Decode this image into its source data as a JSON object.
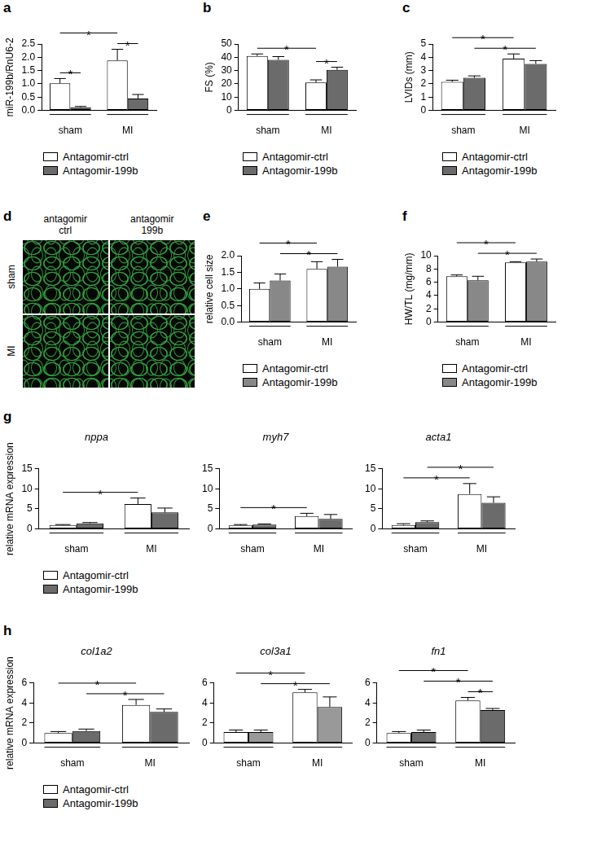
{
  "chart_data": [
    {
      "panel": "a",
      "type": "bar",
      "ylabel": "miR-199b/RnU6-2",
      "categories": [
        "sham",
        "MI"
      ],
      "series": [
        {
          "name": "Antagomir-ctrl",
          "color": "#ffffff",
          "values": [
            1.02,
            1.88
          ],
          "errors": [
            0.18,
            0.42
          ]
        },
        {
          "name": "Antagomir-199b",
          "color": "#6b6b6b",
          "values": [
            0.12,
            0.45
          ],
          "errors": [
            0.03,
            0.15
          ]
        }
      ],
      "ylim": [
        0,
        2.5
      ],
      "yticks": [
        {
          "value": 0,
          "label": "0.0"
        },
        0.5,
        {
          "value": 1,
          "label": "1.0"
        },
        1.5,
        {
          "value": 2,
          "label": "2.0"
        },
        2.5
      ],
      "significance": [
        {
          "between": [
            [
              "sham",
              "Antagomir-ctrl"
            ],
            [
              "sham",
              "Antagomir-199b"
            ]
          ],
          "label": "*"
        },
        {
          "between": [
            [
              "MI",
              "Antagomir-ctrl"
            ],
            [
              "MI",
              "Antagomir-199b"
            ]
          ],
          "label": "*"
        },
        {
          "between": [
            [
              "sham",
              "Antagomir-ctrl"
            ],
            [
              "MI",
              "Antagomir-ctrl"
            ]
          ],
          "label": "*"
        }
      ],
      "legend": "bottom"
    },
    {
      "panel": "b",
      "type": "bar",
      "ylabel": "FS (%)",
      "categories": [
        "sham",
        "MI"
      ],
      "series": [
        {
          "name": "Antagomir-ctrl",
          "color": "#ffffff",
          "values": [
            41,
            21
          ],
          "errors": [
            1.5,
            2
          ]
        },
        {
          "name": "Antagomir-199b",
          "color": "#6b6b6b",
          "values": [
            38,
            30.5
          ],
          "errors": [
            2.5,
            2
          ]
        }
      ],
      "ylim": [
        0,
        50
      ],
      "yticks": [
        0,
        10,
        20,
        30,
        40,
        50
      ],
      "significance": [
        {
          "between": [
            [
              "MI",
              "Antagomir-ctrl"
            ],
            [
              "MI",
              "Antagomir-199b"
            ]
          ],
          "label": "*"
        },
        {
          "between": [
            [
              "sham",
              "Antagomir-ctrl"
            ],
            [
              "MI",
              "Antagomir-ctrl"
            ]
          ],
          "label": "*"
        }
      ],
      "legend": "bottom"
    },
    {
      "panel": "c",
      "type": "bar",
      "ylabel": "LVIDs (mm)",
      "categories": [
        "sham",
        "MI"
      ],
      "series": [
        {
          "name": "Antagomir-ctrl",
          "color": "#ffffff",
          "values": [
            2.15,
            3.9
          ],
          "errors": [
            0.12,
            0.35
          ]
        },
        {
          "name": "Antagomir-199b",
          "color": "#6b6b6b",
          "values": [
            2.45,
            3.5
          ],
          "errors": [
            0.15,
            0.25
          ]
        }
      ],
      "ylim": [
        0,
        5
      ],
      "yticks": [
        0,
        1,
        2,
        3,
        4,
        5
      ],
      "significance": [
        {
          "between": [
            [
              "sham",
              "Antagomir-199b"
            ],
            [
              "MI",
              "Antagomir-199b"
            ]
          ],
          "label": "*"
        },
        {
          "between": [
            [
              "sham",
              "Antagomir-ctrl"
            ],
            [
              "MI",
              "Antagomir-ctrl"
            ]
          ],
          "label": "*"
        }
      ],
      "legend": "bottom"
    },
    {
      "panel": "d",
      "type": "image",
      "columns": [
        [
          "antagomir",
          "ctrl"
        ],
        [
          "antagomir",
          "199b"
        ]
      ],
      "rows": [
        "sham",
        "MI"
      ]
    },
    {
      "panel": "e",
      "type": "bar",
      "ylabel": "relative cell size",
      "categories": [
        "sham",
        "MI"
      ],
      "series": [
        {
          "name": "Antagomir-ctrl",
          "color": "#ffffff",
          "values": [
            1.0,
            1.6
          ],
          "errors": [
            0.18,
            0.22
          ]
        },
        {
          "name": "Antagomir-199b",
          "color": "#888888",
          "values": [
            1.25,
            1.67
          ],
          "errors": [
            0.2,
            0.22
          ]
        }
      ],
      "ylim": [
        0,
        2
      ],
      "yticks": [
        {
          "value": 0,
          "label": "0.0"
        },
        0.5,
        {
          "value": 1,
          "label": "1.0"
        },
        1.5,
        {
          "value": 2,
          "label": "2.0"
        }
      ],
      "significance": [
        {
          "between": [
            [
              "sham",
              "Antagomir-199b"
            ],
            [
              "MI",
              "Antagomir-199b"
            ]
          ],
          "label": "*"
        },
        {
          "between": [
            [
              "sham",
              "Antagomir-ctrl"
            ],
            [
              "MI",
              "Antagomir-ctrl"
            ]
          ],
          "label": "*"
        }
      ],
      "legend": "bottom"
    },
    {
      "panel": "f",
      "type": "bar",
      "ylabel": "HW/TL (mg/mm)",
      "categories": [
        "sham",
        "MI"
      ],
      "series": [
        {
          "name": "Antagomir-ctrl",
          "color": "#ffffff",
          "values": [
            6.9,
            9.0
          ],
          "errors": [
            0.2,
            0.1
          ]
        },
        {
          "name": "Antagomir-199b",
          "color": "#888888",
          "values": [
            6.3,
            9.1
          ],
          "errors": [
            0.6,
            0.4
          ]
        }
      ],
      "ylim": [
        0,
        10
      ],
      "yticks": [
        0,
        2,
        4,
        6,
        8,
        10
      ],
      "significance": [
        {
          "between": [
            [
              "sham",
              "Antagomir-199b"
            ],
            [
              "MI",
              "Antagomir-199b"
            ]
          ],
          "label": "*"
        },
        {
          "between": [
            [
              "sham",
              "Antagomir-ctrl"
            ],
            [
              "MI",
              "Antagomir-ctrl"
            ]
          ],
          "label": "*"
        }
      ],
      "legend": "bottom"
    },
    {
      "panel": "g",
      "type": "bar",
      "title": "nppa",
      "ylabel": "relative mRNA expression",
      "categories": [
        "sham",
        "MI"
      ],
      "series": [
        {
          "name": "Antagomir-ctrl",
          "color": "#ffffff",
          "values": [
            1.0,
            6.2
          ],
          "errors": [
            0.1,
            1.5
          ]
        },
        {
          "name": "Antagomir-199b",
          "color": "#6b6b6b",
          "values": [
            1.4,
            4.1
          ],
          "errors": [
            0.2,
            1.1
          ]
        }
      ],
      "ylim": [
        0,
        15
      ],
      "yticks": [
        0,
        5,
        10,
        15
      ],
      "significance": [
        {
          "between": [
            [
              "sham",
              "Antagomir-ctrl"
            ],
            [
              "MI",
              "Antagomir-ctrl"
            ]
          ],
          "label": "*"
        }
      ],
      "legend": "bottom"
    },
    {
      "type": "bar",
      "title": "myh7",
      "categories": [
        "sham",
        "MI"
      ],
      "series": [
        {
          "name": "Antagomir-ctrl",
          "color": "#ffffff",
          "values": [
            0.9,
            3.2
          ],
          "errors": [
            0.2,
            0.7
          ]
        },
        {
          "name": "Antagomir-199b",
          "color": "#6b6b6b",
          "values": [
            1.1,
            2.5
          ],
          "errors": [
            0.15,
            1.1
          ]
        }
      ],
      "ylim": [
        0,
        15
      ],
      "yticks": [
        0,
        5,
        10,
        15
      ],
      "significance": [
        {
          "between": [
            [
              "sham",
              "Antagomir-ctrl"
            ],
            [
              "MI",
              "Antagomir-ctrl"
            ]
          ],
          "label": "*"
        }
      ]
    },
    {
      "type": "bar",
      "title": "acta1",
      "categories": [
        "sham",
        "MI"
      ],
      "series": [
        {
          "name": "Antagomir-ctrl",
          "color": "#ffffff",
          "values": [
            1.0,
            8.7
          ],
          "errors": [
            0.3,
            2.6
          ]
        },
        {
          "name": "Antagomir-199b",
          "color": "#6b6b6b",
          "values": [
            1.7,
            6.5
          ],
          "errors": [
            0.3,
            1.5
          ]
        }
      ],
      "ylim": [
        0,
        15
      ],
      "yticks": [
        0,
        5,
        10,
        15
      ],
      "significance": [
        {
          "between": [
            [
              "sham",
              "Antagomir-199b"
            ],
            [
              "MI",
              "Antagomir-199b"
            ]
          ],
          "label": "*"
        },
        {
          "between": [
            [
              "sham",
              "Antagomir-ctrl"
            ],
            [
              "MI",
              "Antagomir-ctrl"
            ]
          ],
          "label": "*"
        }
      ]
    },
    {
      "panel": "h",
      "type": "bar",
      "title": "col1a2",
      "ylabel": "relative mRNA expression",
      "categories": [
        "sham",
        "MI"
      ],
      "series": [
        {
          "name": "Antagomir-ctrl",
          "color": "#ffffff",
          "values": [
            1.0,
            3.8
          ],
          "errors": [
            0.15,
            0.55
          ]
        },
        {
          "name": "Antagomir-199b",
          "color": "#6b6b6b",
          "values": [
            1.2,
            3.1
          ],
          "errors": [
            0.2,
            0.3
          ]
        }
      ],
      "ylim": [
        0,
        6
      ],
      "yticks": [
        0,
        2,
        4,
        6
      ],
      "significance": [
        {
          "between": [
            [
              "sham",
              "Antagomir-199b"
            ],
            [
              "MI",
              "Antagomir-199b"
            ]
          ],
          "label": "*"
        },
        {
          "between": [
            [
              "sham",
              "Antagomir-ctrl"
            ],
            [
              "MI",
              "Antagomir-ctrl"
            ]
          ],
          "label": "*"
        }
      ],
      "legend": "bottom"
    },
    {
      "type": "bar",
      "title": "col3a1",
      "categories": [
        "sham",
        "MI"
      ],
      "series": [
        {
          "name": "Antagomir-ctrl",
          "color": "#ffffff",
          "values": [
            1.1,
            5.05
          ],
          "errors": [
            0.2,
            0.3
          ]
        },
        {
          "name": "Antagomir-199b",
          "color": "#999999",
          "values": [
            1.1,
            3.6
          ],
          "errors": [
            0.2,
            1.0
          ]
        }
      ],
      "ylim": [
        0,
        6
      ],
      "yticks": [
        0,
        2,
        4,
        6
      ],
      "significance": [
        {
          "between": [
            [
              "sham",
              "Antagomir-199b"
            ],
            [
              "MI",
              "Antagomir-199b"
            ]
          ],
          "label": "*"
        },
        {
          "between": [
            [
              "sham",
              "Antagomir-ctrl"
            ],
            [
              "MI",
              "Antagomir-ctrl"
            ]
          ],
          "label": "*"
        }
      ]
    },
    {
      "type": "bar",
      "title": "fn1",
      "categories": [
        "sham",
        "MI"
      ],
      "series": [
        {
          "name": "Antagomir-ctrl",
          "color": "#ffffff",
          "values": [
            1.0,
            4.25
          ],
          "errors": [
            0.15,
            0.3
          ]
        },
        {
          "name": "Antagomir-199b",
          "color": "#6b6b6b",
          "values": [
            1.1,
            3.3
          ],
          "errors": [
            0.2,
            0.15
          ]
        }
      ],
      "ylim": [
        0,
        6
      ],
      "yticks": [
        0,
        2,
        4,
        6
      ],
      "significance": [
        {
          "between": [
            [
              "MI",
              "Antagomir-ctrl"
            ],
            [
              "MI",
              "Antagomir-199b"
            ]
          ],
          "label": "*"
        },
        {
          "between": [
            [
              "sham",
              "Antagomir-199b"
            ],
            [
              "MI",
              "Antagomir-199b"
            ]
          ],
          "label": "*"
        },
        {
          "between": [
            [
              "sham",
              "Antagomir-ctrl"
            ],
            [
              "MI",
              "Antagomir-ctrl"
            ]
          ],
          "label": "*"
        }
      ]
    }
  ]
}
